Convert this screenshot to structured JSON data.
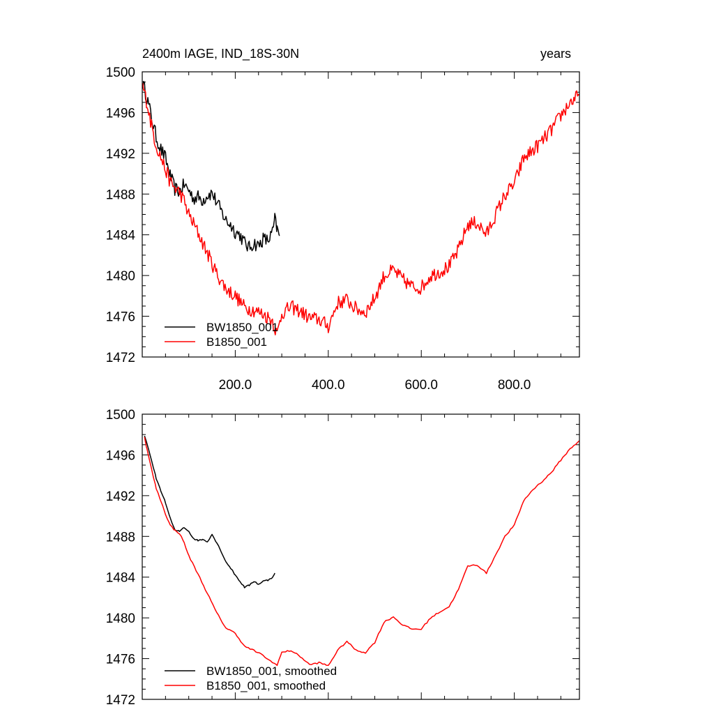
{
  "chart_data": [
    {
      "type": "line",
      "title": "2400m IAGE, IND_18S-30N",
      "units": "years",
      "xlim": [
        0,
        940
      ],
      "ylim": [
        1472,
        1500
      ],
      "yticks": [
        1472,
        1476,
        1480,
        1484,
        1488,
        1492,
        1496,
        1500
      ],
      "xtick_labels": [
        {
          "value": 200,
          "label": "200.0"
        },
        {
          "value": 400,
          "label": "400.0"
        },
        {
          "value": 600,
          "label": "600.0"
        },
        {
          "value": 800,
          "label": "800.0"
        }
      ],
      "legend": "bottom-left",
      "series": [
        {
          "name": "BW1850_001",
          "color": "#000000",
          "x": [
            1,
            10,
            20,
            30,
            40,
            50,
            60,
            70,
            80,
            90,
            100,
            110,
            120,
            130,
            140,
            150,
            160,
            170,
            180,
            190,
            200,
            210,
            220,
            230,
            240,
            250,
            260,
            270,
            280,
            285,
            290,
            295
          ],
          "y": [
            1498.9,
            1497.5,
            1495.5,
            1493.6,
            1492.4,
            1491.5,
            1489.8,
            1488.5,
            1488.3,
            1488.9,
            1488.4,
            1487.6,
            1487.7,
            1487.4,
            1487.9,
            1488.1,
            1487.2,
            1486.3,
            1485.4,
            1485.0,
            1484.3,
            1484.0,
            1483.2,
            1482.7,
            1483.2,
            1482.9,
            1483.6,
            1483.4,
            1484.2,
            1485.5,
            1484.5,
            1483.9
          ]
        },
        {
          "name": "B1850_001",
          "color": "#ff0000",
          "x": [
            1,
            10,
            20,
            30,
            40,
            50,
            60,
            70,
            80,
            90,
            100,
            120,
            140,
            160,
            180,
            200,
            220,
            240,
            260,
            280,
            290,
            300,
            320,
            340,
            360,
            380,
            400,
            420,
            440,
            460,
            480,
            500,
            520,
            540,
            560,
            580,
            600,
            620,
            640,
            660,
            680,
            700,
            720,
            740,
            760,
            780,
            800,
            820,
            840,
            860,
            880,
            900,
            920,
            940
          ],
          "y": [
            1498.6,
            1497.0,
            1494.7,
            1492.8,
            1491.6,
            1490.4,
            1489.2,
            1488.6,
            1488.2,
            1487.3,
            1486.0,
            1484.2,
            1482.2,
            1480.2,
            1478.7,
            1478.0,
            1476.9,
            1476.6,
            1476.2,
            1475.6,
            1474.2,
            1476.3,
            1476.9,
            1476.5,
            1475.8,
            1475.7,
            1475.0,
            1477.3,
            1477.6,
            1476.7,
            1476.4,
            1477.8,
            1480.0,
            1480.5,
            1479.6,
            1478.9,
            1478.8,
            1480.0,
            1480.4,
            1480.9,
            1482.5,
            1485.0,
            1485.2,
            1484.0,
            1486.0,
            1487.9,
            1489.0,
            1491.5,
            1492.3,
            1493.2,
            1494.3,
            1495.7,
            1497.0,
            1497.7
          ]
        }
      ]
    },
    {
      "type": "line",
      "xlim": [
        0,
        940
      ],
      "ylim": [
        1472,
        1500
      ],
      "yticks": [
        1472,
        1476,
        1480,
        1484,
        1488,
        1492,
        1496,
        1500
      ],
      "legend": "bottom-left",
      "series": [
        {
          "name": "BW1850_001, smoothed",
          "color": "#000000",
          "x": [
            5,
            10,
            20,
            30,
            40,
            50,
            60,
            70,
            80,
            90,
            100,
            110,
            120,
            130,
            140,
            150,
            160,
            170,
            180,
            190,
            200,
            210,
            220,
            230,
            240,
            250,
            260,
            270,
            280,
            285
          ],
          "y": [
            1497.8,
            1497.2,
            1495.4,
            1493.7,
            1492.5,
            1491.3,
            1489.8,
            1488.6,
            1488.5,
            1488.9,
            1488.5,
            1487.8,
            1487.6,
            1487.7,
            1487.5,
            1488.2,
            1487.4,
            1486.5,
            1485.5,
            1484.9,
            1484.2,
            1483.6,
            1483.0,
            1483.2,
            1483.6,
            1483.3,
            1483.6,
            1483.7,
            1484.0,
            1484.4
          ]
        },
        {
          "name": "B1850_001, smoothed",
          "color": "#ff0000",
          "x": [
            5,
            10,
            20,
            30,
            40,
            50,
            60,
            70,
            80,
            90,
            100,
            120,
            140,
            160,
            180,
            200,
            220,
            240,
            260,
            280,
            290,
            300,
            320,
            340,
            360,
            380,
            400,
            420,
            440,
            460,
            480,
            500,
            520,
            540,
            560,
            580,
            600,
            620,
            640,
            660,
            680,
            700,
            720,
            740,
            760,
            780,
            800,
            820,
            840,
            860,
            880,
            900,
            920,
            940
          ],
          "y": [
            1497.7,
            1496.6,
            1494.6,
            1492.7,
            1491.5,
            1490.2,
            1489.1,
            1488.6,
            1488.3,
            1487.4,
            1486.1,
            1484.3,
            1482.4,
            1480.5,
            1479.0,
            1478.5,
            1477.2,
            1476.8,
            1476.3,
            1475.6,
            1475.4,
            1476.6,
            1476.8,
            1476.2,
            1475.4,
            1475.6,
            1475.3,
            1476.8,
            1477.7,
            1476.8,
            1476.6,
            1477.6,
            1479.6,
            1480.1,
            1479.3,
            1478.9,
            1478.9,
            1480.0,
            1480.6,
            1481.1,
            1482.8,
            1485.1,
            1485.2,
            1484.4,
            1486.2,
            1488.0,
            1489.1,
            1491.5,
            1492.6,
            1493.4,
            1494.3,
            1495.5,
            1496.6,
            1497.4
          ]
        }
      ]
    }
  ]
}
